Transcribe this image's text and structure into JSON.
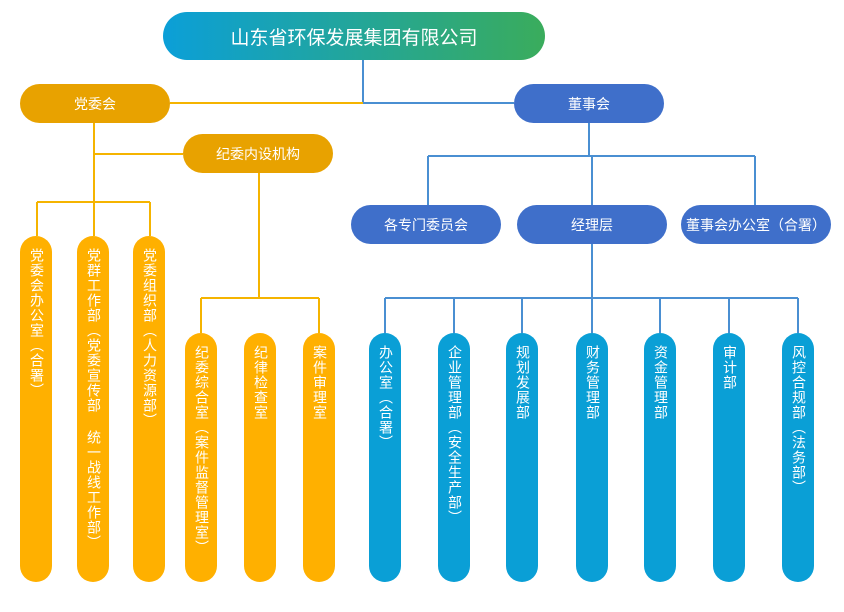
{
  "title": "山东省环保发展集团有限公司",
  "colors": {
    "party": "#e8a200",
    "party_column": "#ffb000",
    "board": "#3f6fca",
    "dept_column": "#0a9fd6"
  },
  "party": {
    "label": "党委会",
    "discipline": "纪委内设机构",
    "departments": [
      "党委会办公室（合署）",
      "党群工作部（党委宣传部 统一战线工作部）",
      "党委组织部（人力资源部）"
    ],
    "discipline_departments": [
      "纪委综合室（案件监督管理室）",
      "纪律检查室",
      "案件审理室"
    ]
  },
  "board": {
    "label": "董事会",
    "children": [
      "各专门委员会",
      "经理层",
      "董事会办公室（合署）"
    ],
    "management_departments": [
      "办公室（合署）",
      "企业管理部（安全生产部）",
      "规划发展部",
      "财务管理部",
      "资金管理部",
      "审计部",
      "风控合规部（法务部）"
    ]
  }
}
